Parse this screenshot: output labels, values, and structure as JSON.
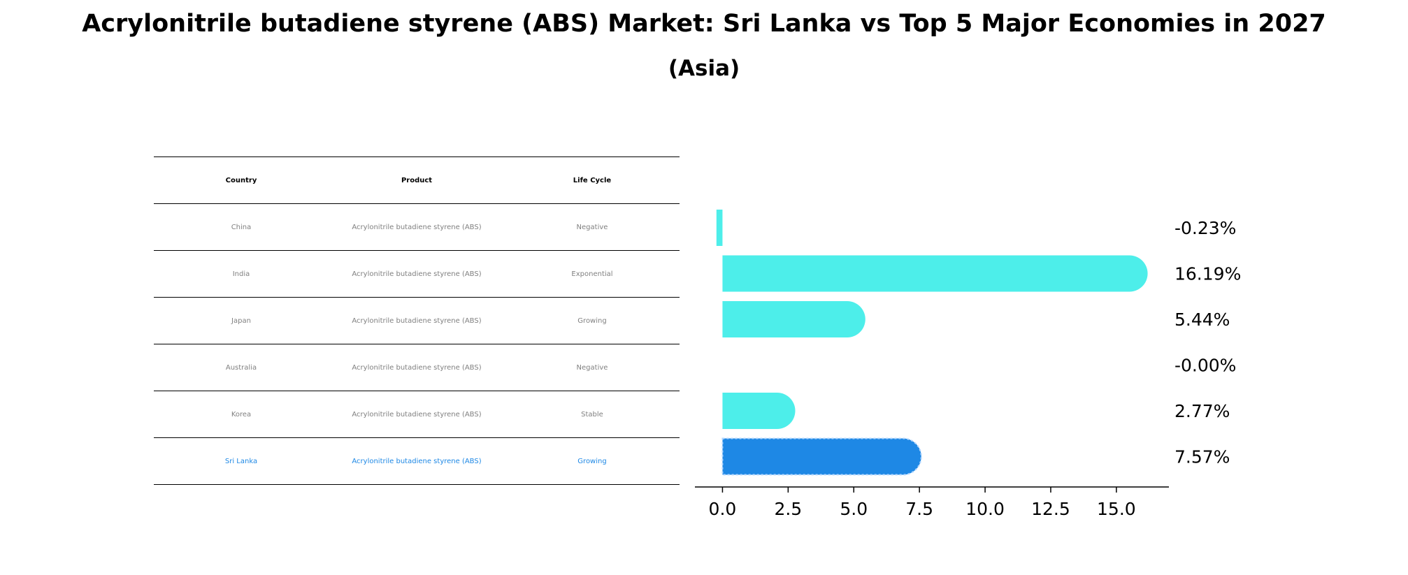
{
  "title": "Acrylonitrile butadiene styrene (ABS) Market: Sri Lanka vs Top 5 Major Economies in 2027",
  "subtitle": "(Asia)",
  "table": {
    "headers": [
      "Country",
      "Product",
      "Life Cycle"
    ],
    "rows": [
      {
        "country": "China",
        "product": "Acrylonitrile butadiene styrene (ABS)",
        "life_cycle": "Negative"
      },
      {
        "country": "India",
        "product": "Acrylonitrile butadiene styrene (ABS)",
        "life_cycle": "Exponential"
      },
      {
        "country": "Japan",
        "product": "Acrylonitrile butadiene styrene (ABS)",
        "life_cycle": "Growing"
      },
      {
        "country": "Australia",
        "product": "Acrylonitrile butadiene styrene (ABS)",
        "life_cycle": "Negative"
      },
      {
        "country": "Korea",
        "product": "Acrylonitrile butadiene styrene (ABS)",
        "life_cycle": "Stable"
      },
      {
        "country": "Sri Lanka",
        "product": "Acrylonitrile butadiene styrene (ABS)",
        "life_cycle": "Growing"
      }
    ]
  },
  "colors": {
    "bar": "#4deeea",
    "highlight": "#1e88e5",
    "text_gray": "#808080"
  },
  "chart_data": {
    "type": "bar",
    "orientation": "horizontal",
    "categories": [
      "China",
      "India",
      "Japan",
      "Australia",
      "Korea",
      "Sri Lanka"
    ],
    "values": [
      -0.23,
      16.19,
      5.44,
      -0.0,
      2.77,
      7.57
    ],
    "value_labels": [
      "-0.23%",
      "16.19%",
      "5.44%",
      "-0.00%",
      "2.77%",
      "7.57%"
    ],
    "highlight_category": "Sri Lanka",
    "xlim": [
      -1.05,
      17.0
    ],
    "xticks": [
      0.0,
      2.5,
      5.0,
      7.5,
      10.0,
      12.5,
      15.0
    ],
    "xtick_labels": [
      "0.0",
      "2.5",
      "5.0",
      "7.5",
      "10.0",
      "12.5",
      "15.0"
    ],
    "xlabel": "",
    "ylabel": ""
  }
}
